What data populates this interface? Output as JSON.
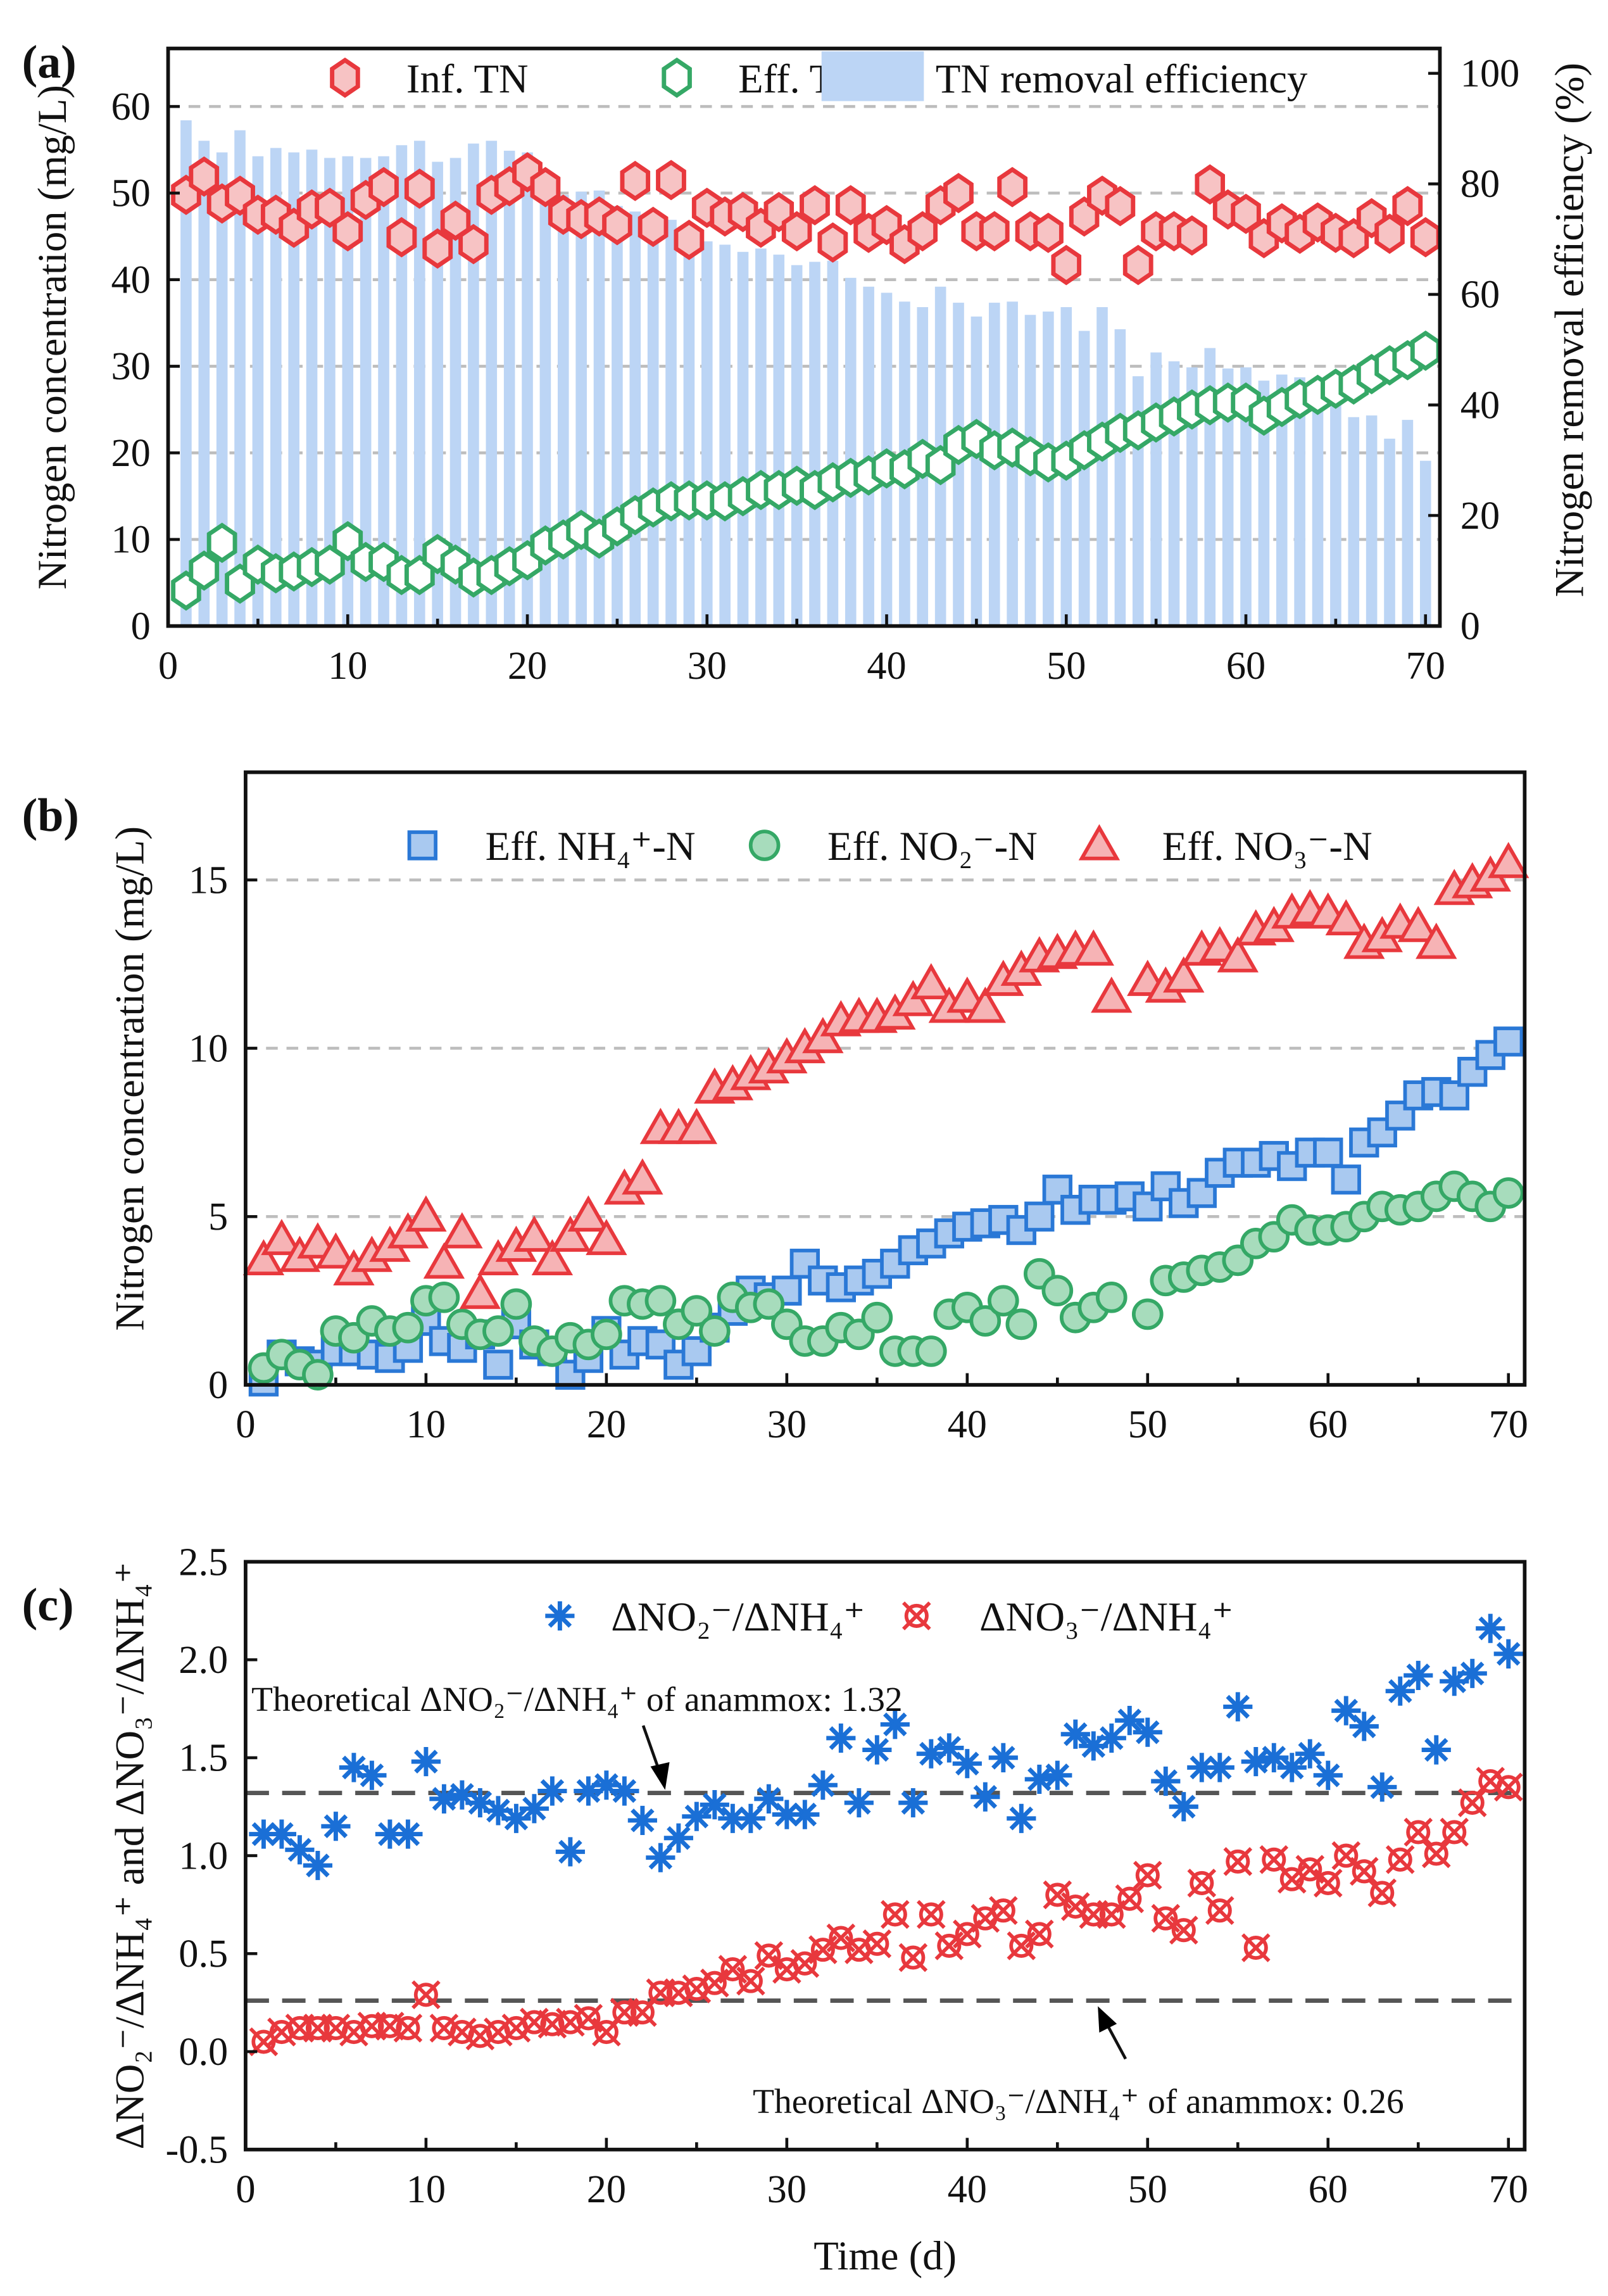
{
  "chart_data": [
    {
      "panel_label": "(a)",
      "type": "bar+scatter",
      "xlabel": "",
      "ylabel": "Nitrogen concentration (mg/L)",
      "y2label": "Nitrogen removal efficiency (%)",
      "xlim": [
        0,
        70.8
      ],
      "ylim": [
        0,
        66.7
      ],
      "y2lim": [
        0,
        104.5
      ],
      "xticks": [
        0,
        10,
        20,
        30,
        40,
        50,
        60,
        70
      ],
      "yticks": [
        0,
        10,
        20,
        30,
        40,
        50,
        60
      ],
      "y2ticks": [
        0,
        20,
        40,
        60,
        80,
        100
      ],
      "grid": "horizontal dashed",
      "legend_placement": "top",
      "colors": {
        "inf": "#e8383d",
        "inf_fill": "#f7c3c4",
        "eff": "#35a866",
        "bar": "#bcd5f5"
      },
      "x": [
        1,
        2,
        3,
        4,
        5,
        6,
        7,
        8,
        9,
        10,
        11,
        12,
        13,
        14,
        15,
        16,
        17,
        18,
        19,
        20,
        21,
        22,
        23,
        24,
        25,
        26,
        27,
        28,
        29,
        30,
        31,
        32,
        33,
        34,
        35,
        36,
        37,
        38,
        39,
        40,
        41,
        42,
        43,
        44,
        45,
        46,
        47,
        48,
        49,
        50,
        51,
        52,
        53,
        54,
        55,
        56,
        57,
        58,
        59,
        60,
        61,
        62,
        63,
        64,
        65,
        66,
        67,
        68,
        69,
        70
      ],
      "series": [
        {
          "name": "Inf. TN",
          "kind": "hexagon",
          "axis": "left",
          "values": [
            49.8,
            51.9,
            48.8,
            49.7,
            47.5,
            47.5,
            46,
            48.1,
            48.3,
            45.6,
            49.2,
            50.7,
            44.9,
            50.5,
            43.6,
            46.8,
            44.1,
            49.8,
            50.8,
            52.4,
            50.7,
            47.5,
            47,
            47.3,
            46.3,
            51.4,
            46.1,
            51.5,
            44.6,
            48.3,
            47.3,
            47.8,
            46,
            47.8,
            45.6,
            48.6,
            44.3,
            48.6,
            45.4,
            46.3,
            44.1,
            45.6,
            48.6,
            50,
            45.6,
            45.6,
            50.7,
            45.6,
            45.4,
            41.7,
            47.3,
            49.7,
            48.5,
            41.7,
            45.6,
            45.6,
            45.1,
            51,
            48.1,
            47.6,
            44.8,
            46.5,
            45.3,
            46.6,
            45.4,
            44.8,
            47.1,
            45.3,
            48.5,
            44.9
          ]
        },
        {
          "name": "Eff. TN",
          "kind": "hexagon-open",
          "axis": "left",
          "values": [
            4.1,
            6.4,
            9.6,
            4.9,
            7.1,
            6.1,
            6.3,
            6.8,
            7.1,
            9.8,
            7.4,
            7.4,
            5.9,
            5.9,
            8.3,
            7.1,
            5.6,
            5.9,
            6.9,
            7.6,
            9.3,
            10,
            11.1,
            10.1,
            11.5,
            12.8,
            13.7,
            14.4,
            14.5,
            14.5,
            14.4,
            15,
            15.7,
            15.7,
            16.2,
            15.7,
            16.6,
            17.1,
            17.4,
            18.2,
            18.1,
            19.3,
            18.6,
            20.9,
            21.6,
            20.3,
            20.6,
            19.6,
            18.9,
            19.1,
            20.3,
            21.3,
            22.3,
            22.6,
            23.5,
            24.2,
            25,
            25.5,
            25.8,
            25.8,
            24.3,
            25.3,
            26.2,
            26.7,
            27.4,
            27.9,
            29.1,
            30.1,
            30.7,
            31.8
          ]
        },
        {
          "name": "TN removal efficiency",
          "kind": "bar",
          "axis": "right",
          "values": [
            91.5,
            87.8,
            85.7,
            89.7,
            85,
            86.5,
            85.7,
            86.2,
            84.7,
            85,
            84.7,
            85,
            87,
            87.8,
            84,
            84.7,
            87.3,
            87.8,
            86,
            85.7,
            79,
            78,
            78.6,
            78.8,
            76,
            75,
            75,
            73.5,
            72,
            69.6,
            69,
            67.7,
            68.3,
            67.2,
            65.3,
            65.9,
            66.1,
            63,
            61.4,
            60.3,
            58.7,
            57.7,
            61.4,
            58.5,
            56,
            58.5,
            58.7,
            56.3,
            56.9,
            57.7,
            53.4,
            57.7,
            53.7,
            45.2,
            49.5,
            47.9,
            46.8,
            50.3,
            46.6,
            46.8,
            44.4,
            45.5,
            45,
            43.1,
            41.8,
            37.8,
            38.1,
            33.9,
            37.3,
            29.9
          ]
        }
      ]
    },
    {
      "panel_label": "(b)",
      "type": "scatter",
      "xlabel": "",
      "ylabel": "Nitrogen concentration (mg/L)",
      "xlim": [
        0,
        70.9
      ],
      "ylim": [
        0,
        18.2
      ],
      "xticks": [
        0,
        10,
        20,
        30,
        40,
        50,
        60,
        70
      ],
      "yticks": [
        0,
        5,
        10,
        15
      ],
      "grid": "horizontal dashed",
      "legend_placement": "top",
      "x": [
        1,
        2,
        3,
        4,
        5,
        6,
        7,
        8,
        9,
        10,
        11,
        12,
        13,
        14,
        15,
        16,
        17,
        18,
        19,
        20,
        21,
        22,
        23,
        24,
        25,
        26,
        27,
        28,
        29,
        30,
        31,
        32,
        33,
        34,
        35,
        36,
        37,
        38,
        39,
        40,
        41,
        42,
        43,
        44,
        45,
        46,
        47,
        48,
        49,
        50,
        51,
        52,
        53,
        54,
        55,
        56,
        57,
        58,
        59,
        60,
        61,
        62,
        63,
        64,
        65,
        66,
        67,
        68,
        69,
        70
      ],
      "series": [
        {
          "name": "Eff. NH₄⁺-N",
          "kind": "square",
          "stroke": "#2a78d6",
          "fill": "#a9c9f0",
          "values": [
            0.1,
            0.9,
            0.7,
            0.6,
            1.0,
            1.0,
            0.9,
            0.8,
            1.1,
            1.9,
            1.3,
            1.1,
            1.5,
            0.6,
            1.8,
            1.2,
            1.0,
            0.3,
            0.8,
            1.6,
            0.9,
            1.3,
            1.2,
            0.6,
            1.0,
            1.7,
            2.2,
            2.8,
            2.6,
            2.8,
            3.6,
            3.1,
            2.9,
            3.1,
            3.3,
            3.6,
            4.0,
            4.2,
            4.5,
            4.7,
            4.8,
            4.9,
            4.6,
            5.0,
            5.8,
            5.2,
            5.5,
            5.5,
            5.6,
            5.3,
            5.9,
            5.4,
            5.7,
            6.3,
            6.6,
            6.6,
            6.8,
            6.5,
            6.9,
            6.9,
            6.1,
            7.2,
            7.5,
            8.0,
            8.6,
            8.7,
            8.6,
            9.3,
            9.8,
            10.2
          ]
        },
        {
          "name": "Eff. NO₂⁻-N",
          "kind": "circle",
          "stroke": "#35a866",
          "fill": "#a7dcbc",
          "values": [
            0.5,
            0.9,
            0.6,
            0.3,
            1.6,
            1.4,
            1.9,
            1.6,
            1.7,
            2.5,
            2.6,
            1.8,
            1.5,
            1.6,
            2.4,
            1.3,
            1.0,
            1.4,
            1.2,
            1.5,
            2.5,
            2.4,
            2.5,
            1.8,
            2.2,
            1.6,
            2.6,
            2.3,
            2.4,
            1.8,
            1.3,
            1.3,
            1.7,
            1.5,
            2.0,
            1.0,
            1.0,
            1.0,
            2.1,
            2.3,
            1.9,
            2.5,
            1.8,
            3.3,
            2.8,
            2.0,
            2.3,
            2.6,
            null,
            2.1,
            3.1,
            3.2,
            3.4,
            3.5,
            3.7,
            4.2,
            4.4,
            4.9,
            4.6,
            4.6,
            4.7,
            5.0,
            5.3,
            5.2,
            5.3,
            5.6,
            5.9,
            5.6,
            5.3,
            5.7
          ]
        },
        {
          "name": "Eff. NO₃⁻-N",
          "kind": "triangle",
          "stroke": "#e8383d",
          "fill": "#f6b3b5",
          "values": [
            3.7,
            4.3,
            3.8,
            4.2,
            3.9,
            3.4,
            3.8,
            4.1,
            4.5,
            5.0,
            3.6,
            4.5,
            2.7,
            3.7,
            4.1,
            4.4,
            3.7,
            4.4,
            5.0,
            4.3,
            5.8,
            6.1,
            7.6,
            7.6,
            7.6,
            8.8,
            8.9,
            9.2,
            9.4,
            9.7,
            10.0,
            10.3,
            10.8,
            10.9,
            10.9,
            11.0,
            11.4,
            11.9,
            11.2,
            11.5,
            11.2,
            12.0,
            12.3,
            12.7,
            12.8,
            12.9,
            12.9,
            11.5,
            null,
            12.0,
            11.8,
            12.1,
            12.9,
            13.0,
            12.7,
            13.5,
            13.6,
            14.0,
            14.1,
            14.0,
            13.8,
            13.1,
            13.3,
            13.7,
            13.6,
            13.1,
            14.7,
            14.9,
            15.1,
            15.5
          ]
        }
      ]
    },
    {
      "panel_label": "(c)",
      "type": "scatter",
      "xlabel": "Time (d)",
      "ylabel": "ΔNO₂⁻/ΔNH₄⁺ and ΔNO₃⁻/ΔNH₄⁺",
      "xlim": [
        0,
        70.9
      ],
      "ylim": [
        -0.5,
        2.5
      ],
      "xticks": [
        0,
        10,
        20,
        30,
        40,
        50,
        60,
        70
      ],
      "yticks": [
        -0.5,
        0.0,
        0.5,
        1.0,
        1.5,
        2.0,
        2.5
      ],
      "grid": "none",
      "legend_placement": "top",
      "x": [
        1,
        2,
        3,
        4,
        5,
        6,
        7,
        8,
        9,
        10,
        11,
        12,
        13,
        14,
        15,
        16,
        17,
        18,
        19,
        20,
        21,
        22,
        23,
        24,
        25,
        26,
        27,
        28,
        29,
        30,
        31,
        32,
        33,
        34,
        35,
        36,
        37,
        38,
        39,
        40,
        41,
        42,
        43,
        44,
        45,
        46,
        47,
        48,
        49,
        50,
        51,
        52,
        53,
        54,
        55,
        56,
        57,
        58,
        59,
        60,
        61,
        62,
        63,
        64,
        65,
        66,
        67,
        68,
        69,
        70
      ],
      "series": [
        {
          "name": "ΔNO₂⁻/ΔNH₄⁺",
          "kind": "asterisk",
          "stroke": "#1a6fd6",
          "values": [
            1.11,
            1.11,
            1.03,
            0.95,
            1.15,
            1.45,
            1.41,
            1.11,
            1.11,
            1.48,
            1.29,
            1.31,
            1.27,
            1.23,
            1.19,
            1.24,
            1.33,
            1.02,
            1.33,
            1.36,
            1.33,
            1.18,
            0.99,
            1.09,
            1.2,
            1.26,
            1.19,
            1.19,
            1.29,
            1.21,
            1.21,
            1.36,
            1.6,
            1.27,
            1.54,
            1.67,
            1.27,
            1.52,
            1.55,
            1.47,
            1.3,
            1.5,
            1.19,
            1.39,
            1.41,
            1.62,
            1.56,
            1.6,
            1.69,
            1.63,
            1.38,
            1.25,
            1.45,
            1.45,
            1.76,
            1.48,
            1.5,
            1.45,
            1.52,
            1.41,
            1.74,
            1.66,
            1.35,
            1.84,
            1.92,
            1.54,
            1.89,
            1.93,
            2.16,
            2.03
          ]
        },
        {
          "name": "ΔNO₃⁻/ΔNH₄⁺",
          "kind": "crossed-circle",
          "stroke": "#e8383d",
          "values": [
            0.05,
            0.1,
            0.12,
            0.12,
            0.12,
            0.1,
            0.13,
            0.13,
            0.12,
            0.29,
            0.12,
            0.1,
            0.08,
            0.1,
            0.12,
            0.15,
            0.14,
            0.15,
            0.17,
            0.1,
            0.2,
            0.2,
            0.3,
            0.3,
            0.32,
            0.35,
            0.42,
            0.36,
            0.49,
            0.42,
            0.45,
            0.52,
            0.58,
            0.52,
            0.55,
            0.7,
            0.48,
            0.7,
            0.54,
            0.6,
            0.68,
            0.72,
            0.54,
            0.6,
            0.8,
            0.74,
            0.7,
            0.7,
            0.78,
            0.9,
            0.68,
            0.62,
            0.86,
            0.72,
            0.97,
            0.53,
            0.98,
            0.88,
            0.93,
            0.86,
            1.0,
            0.92,
            0.81,
            0.98,
            1.12,
            1.01,
            1.12,
            1.27,
            1.38,
            1.35
          ]
        }
      ],
      "reference_lines": [
        {
          "value": 1.32,
          "label": "Theoretical ΔNO₂⁻/ΔNH₄⁺ of anammox: 1.32"
        },
        {
          "value": 0.26,
          "label": "Theoretical ΔNO₃⁻/ΔNH₄⁺ of anammox: 0.26"
        }
      ]
    }
  ]
}
